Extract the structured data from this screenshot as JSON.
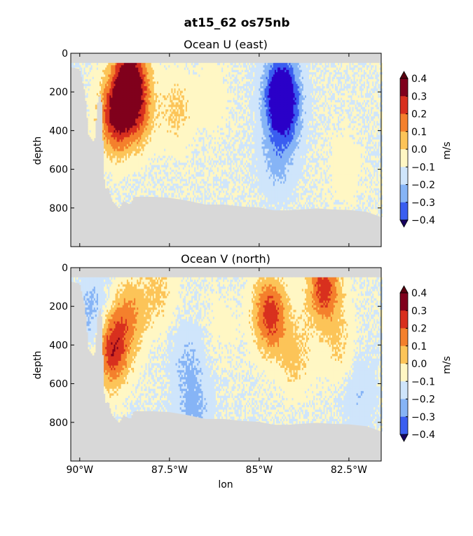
{
  "figure": {
    "suptitle": "at15_62 os75nb",
    "colors": {
      "land": "#d8d8d8",
      "levels": [
        "#2a00c8",
        "#3a5ef0",
        "#86b4f6",
        "#cfe5fb",
        "#fff7c4",
        "#fcc458",
        "#f4802c",
        "#d8301e",
        "#80001c"
      ],
      "under": "#180060",
      "over": "#5a0010"
    }
  },
  "chart_data": [
    {
      "type": "heatmap",
      "title": "Ocean U (east)",
      "xlabel": "",
      "ylabel": "depth",
      "xlim": [
        -90.25,
        -81.6
      ],
      "ylim": [
        1000,
        0
      ],
      "xticks": [
        -90,
        -87.5,
        -85,
        -82.5
      ],
      "xtick_labels": [],
      "yticks": [
        0,
        200,
        400,
        600,
        800
      ],
      "ytick_labels": [
        "0",
        "200",
        "400",
        "600",
        "800"
      ],
      "bottom_profile": {
        "lon": [
          -90.25,
          -90.0,
          -89.85,
          -89.75,
          -89.6,
          -89.5,
          -89.4,
          -89.3,
          -89.2,
          -89.1,
          -89.0,
          -88.9,
          -88.8,
          -88.6,
          -88.5,
          -88.0,
          -87.5,
          -87.0,
          -86.5,
          -86.0,
          -85.5,
          -85.0,
          -84.6,
          -84.2,
          -83.8,
          -83.4,
          -83.0,
          -82.5,
          -82.0,
          -81.6
        ],
        "depth": [
          70,
          80,
          200,
          420,
          460,
          230,
          200,
          700,
          690,
          760,
          780,
          800,
          760,
          780,
          740,
          740,
          745,
          760,
          780,
          780,
          790,
          795,
          810,
          810,
          805,
          800,
          805,
          808,
          818,
          845
        ]
      },
      "colorbar": {
        "label": "m/s",
        "ticks": [
          "0.4",
          "0.3",
          "0.2",
          "0.1",
          "0.0",
          "−0.1",
          "−0.2",
          "−0.3",
          "−0.4"
        ]
      },
      "features": [
        {
          "lon": -88.6,
          "depth": 120,
          "value": 0.45
        },
        {
          "lon": -89.0,
          "depth": 320,
          "value": 0.42
        },
        {
          "lon": -88.4,
          "depth": 300,
          "value": 0.25
        },
        {
          "lon": -87.3,
          "depth": 300,
          "value": 0.12
        },
        {
          "lon": -86.3,
          "depth": 220,
          "value": 0.06
        },
        {
          "lon": -84.4,
          "depth": 200,
          "value": -0.38
        },
        {
          "lon": -84.3,
          "depth": 300,
          "value": -0.22
        },
        {
          "lon": -84.5,
          "depth": 550,
          "value": -0.12
        },
        {
          "lon": -82.6,
          "depth": 600,
          "value": 0.06
        }
      ]
    },
    {
      "type": "heatmap",
      "title": "Ocean V (north)",
      "xlabel": "lon",
      "ylabel": "depth",
      "xlim": [
        -90.25,
        -81.6
      ],
      "ylim": [
        1000,
        0
      ],
      "xticks": [
        -90,
        -87.5,
        -85,
        -82.5
      ],
      "xtick_labels": [
        "90°W",
        "87.5°W",
        "85°W",
        "82.5°W"
      ],
      "yticks": [
        0,
        200,
        400,
        600,
        800
      ],
      "ytick_labels": [
        "0",
        "200",
        "400",
        "600",
        "800"
      ],
      "bottom_profile": {
        "lon": [
          -90.25,
          -90.0,
          -89.85,
          -89.75,
          -89.6,
          -89.5,
          -89.4,
          -89.3,
          -89.2,
          -89.1,
          -89.0,
          -88.9,
          -88.8,
          -88.6,
          -88.5,
          -88.0,
          -87.5,
          -87.0,
          -86.5,
          -86.0,
          -85.5,
          -85.0,
          -84.6,
          -84.2,
          -83.8,
          -83.4,
          -83.0,
          -82.5,
          -82.0,
          -81.6
        ],
        "depth": [
          70,
          80,
          200,
          420,
          460,
          230,
          200,
          700,
          690,
          760,
          780,
          800,
          760,
          780,
          740,
          740,
          745,
          760,
          780,
          780,
          790,
          795,
          810,
          810,
          805,
          800,
          805,
          808,
          818,
          845
        ]
      },
      "colorbar": {
        "label": "m/s",
        "ticks": [
          "0.4",
          "0.3",
          "0.2",
          "0.1",
          "0.0",
          "−0.1",
          "−0.2",
          "−0.3",
          "−0.4"
        ]
      },
      "features": [
        {
          "lon": -89.1,
          "depth": 420,
          "value": 0.38
        },
        {
          "lon": -88.6,
          "depth": 250,
          "value": 0.2
        },
        {
          "lon": -87.8,
          "depth": 120,
          "value": 0.12
        },
        {
          "lon": -87.0,
          "depth": 500,
          "value": -0.1
        },
        {
          "lon": -86.0,
          "depth": 300,
          "value": 0.04
        },
        {
          "lon": -84.7,
          "depth": 240,
          "value": 0.36
        },
        {
          "lon": -84.0,
          "depth": 450,
          "value": 0.13
        },
        {
          "lon": -83.2,
          "depth": 100,
          "value": 0.35
        },
        {
          "lon": -82.8,
          "depth": 400,
          "value": 0.1
        },
        {
          "lon": -82.2,
          "depth": 650,
          "value": -0.08
        },
        {
          "lon": -89.6,
          "depth": 250,
          "value": -0.15
        },
        {
          "lon": -86.8,
          "depth": 750,
          "value": -0.12
        }
      ]
    }
  ]
}
